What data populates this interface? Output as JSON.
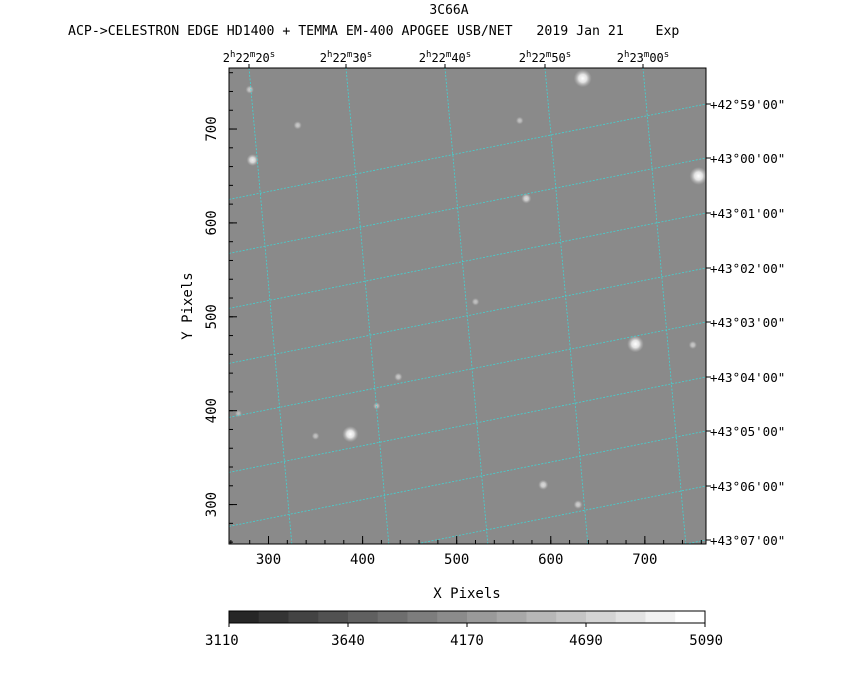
{
  "title": "3C66A",
  "subtitle": "ACP->CELESTRON EDGE HD1400 + TEMMA EM-400 APOGEE USB/NET   2019 Jan 21    Exp",
  "axes": {
    "xlabel": "X Pixels",
    "ylabel": "Y Pixels",
    "x_ticks": [
      "300",
      "400",
      "500",
      "600",
      "700"
    ],
    "y_ticks": [
      "300",
      "400",
      "500",
      "600",
      "700"
    ],
    "xlim": [
      258,
      765
    ],
    "ylim": [
      258,
      765
    ]
  },
  "ra_labels": [
    {
      "h": "2",
      "m": "22",
      "s": "20"
    },
    {
      "h": "2",
      "m": "22",
      "s": "30"
    },
    {
      "h": "2",
      "m": "22",
      "s": "40"
    },
    {
      "h": "2",
      "m": "22",
      "s": "50"
    },
    {
      "h": "2",
      "m": "23",
      "s": "00"
    }
  ],
  "dec_labels": [
    "+42°59'00\"",
    "+43°00'00\"",
    "+43°01'00\"",
    "+43°02'00\"",
    "+43°03'00\"",
    "+43°04'00\"",
    "+43°05'00\"",
    "+43°06'00\"",
    "+43°07'00\""
  ],
  "colorbar": {
    "labels": [
      "3110",
      "3640",
      "4170",
      "4690",
      "5090"
    ],
    "levels": 16
  },
  "colors": {
    "background": "#ffffff",
    "image_gray": "#8a8a8a",
    "grid": "#3fd4d4",
    "text": "#000000"
  },
  "stars": [
    {
      "x": 634,
      "y": 754,
      "flux": 1.0
    },
    {
      "x": 757,
      "y": 650,
      "flux": 1.0
    },
    {
      "x": 690,
      "y": 471,
      "flux": 0.9
    },
    {
      "x": 387,
      "y": 375,
      "flux": 0.85
    },
    {
      "x": 283,
      "y": 667,
      "flux": 0.5
    },
    {
      "x": 574,
      "y": 626,
      "flux": 0.35
    },
    {
      "x": 592,
      "y": 321,
      "flux": 0.35
    },
    {
      "x": 331,
      "y": 704,
      "flux": 0.2
    },
    {
      "x": 280,
      "y": 742,
      "flux": 0.2
    },
    {
      "x": 438,
      "y": 436,
      "flux": 0.2
    },
    {
      "x": 350,
      "y": 373,
      "flux": 0.15
    },
    {
      "x": 751,
      "y": 470,
      "flux": 0.2
    },
    {
      "x": 629,
      "y": 300,
      "flux": 0.25
    },
    {
      "x": 520,
      "y": 516,
      "flux": 0.15
    },
    {
      "x": 567,
      "y": 709,
      "flux": 0.15
    },
    {
      "x": 415,
      "y": 405,
      "flux": 0.12
    },
    {
      "x": 268,
      "y": 397,
      "flux": 0.1
    }
  ]
}
